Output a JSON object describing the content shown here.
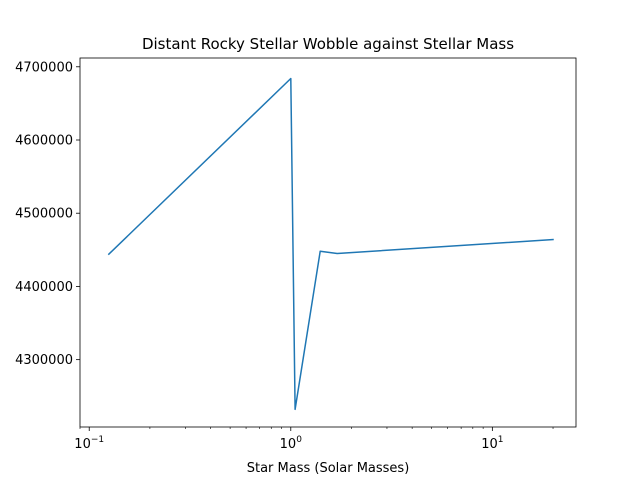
{
  "chart_data": {
    "type": "line",
    "title": "Distant Rocky Stellar Wobble against Stellar Mass",
    "xlabel": "Star Mass (Solar Masses)",
    "ylabel": "",
    "xscale": "log",
    "xlim": [
      0.09,
      26
    ],
    "ylim": [
      4208000,
      4712000
    ],
    "grid": false,
    "series": [
      {
        "color": "#1f77b4",
        "x": [
          0.125,
          1.0,
          1.05,
          1.4,
          1.7,
          20
        ],
        "y": [
          4444000,
          4684000,
          4232000,
          4448000,
          4445000,
          4464000
        ]
      }
    ],
    "xticks": [
      {
        "value": 0.1,
        "label_base": "10",
        "label_exp": "−1"
      },
      {
        "value": 1,
        "label_base": "10",
        "label_exp": "0"
      },
      {
        "value": 10,
        "label_base": "10",
        "label_exp": "1"
      }
    ],
    "yticks": [
      {
        "value": 4300000,
        "label": "4300000"
      },
      {
        "value": 4400000,
        "label": "4400000"
      },
      {
        "value": 4500000,
        "label": "4500000"
      },
      {
        "value": 4600000,
        "label": "4600000"
      },
      {
        "value": 4700000,
        "label": "4700000"
      }
    ]
  }
}
